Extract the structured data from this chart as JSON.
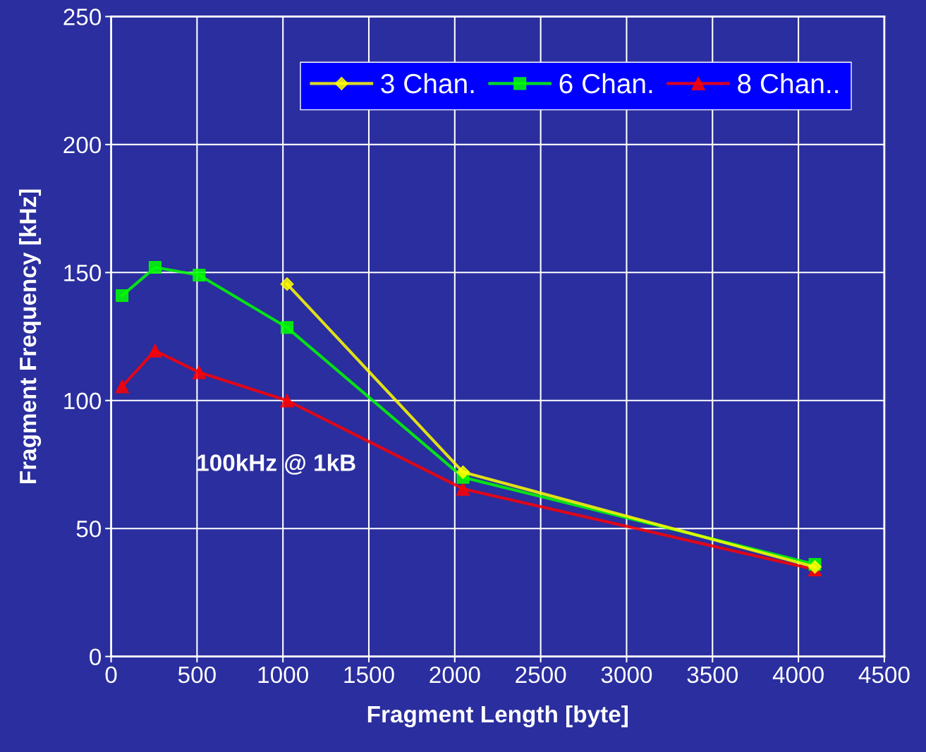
{
  "chart_data": {
    "type": "line",
    "xlabel": "Fragment Length [byte]",
    "ylabel": "Fragment Frequency [kHz]",
    "x": [
      64,
      256,
      512,
      1024,
      2048,
      4096
    ],
    "series": [
      {
        "name": "3 Chan.",
        "color": "#ffff00",
        "marker": "diamond",
        "values": [
          null,
          null,
          null,
          145.5,
          72,
          35
        ]
      },
      {
        "name": "6 Chan.",
        "color": "#00ff00",
        "marker": "square",
        "values": [
          141,
          152,
          149,
          128.5,
          70,
          36
        ]
      },
      {
        "name": "8 Chan..",
        "color": "#ff0000",
        "marker": "triangle",
        "values": [
          105.5,
          119.5,
          111,
          100,
          65.5,
          34
        ]
      }
    ],
    "xlim": [
      0,
      4500
    ],
    "xticks": [
      0,
      500,
      1000,
      1500,
      2000,
      2500,
      3000,
      3500,
      4000,
      4500
    ],
    "ylim": [
      0,
      250
    ],
    "yticks": [
      0,
      50,
      100,
      150,
      200,
      250
    ],
    "grid": true,
    "legend": "top right",
    "line_style": "solid",
    "annotations": [
      "100kHz @ 1kB"
    ]
  }
}
